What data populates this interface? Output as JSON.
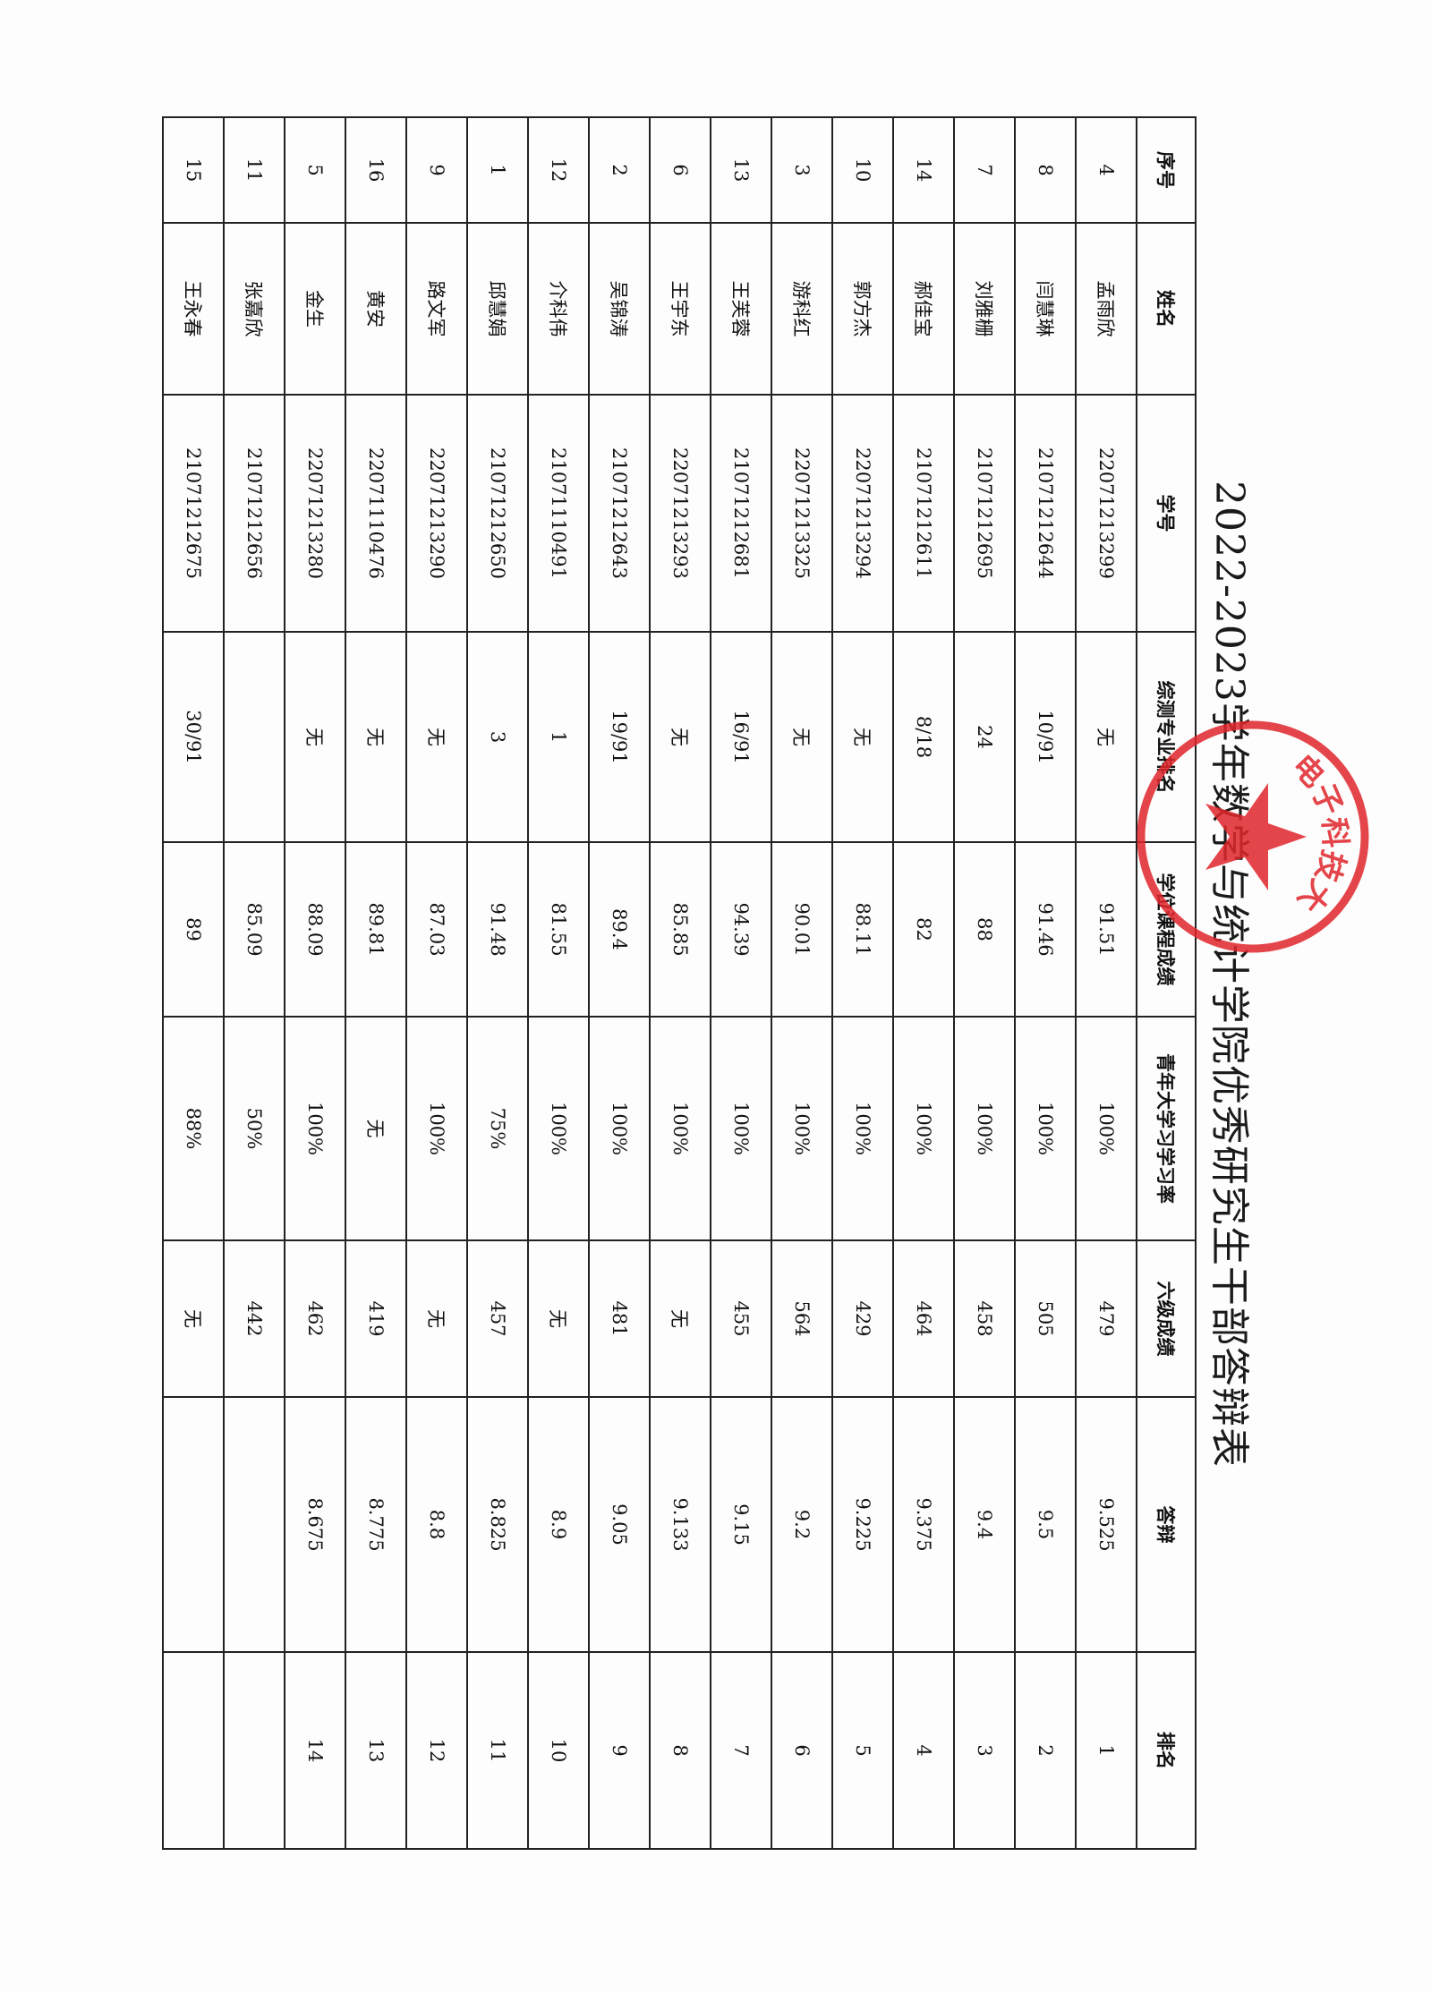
{
  "document": {
    "title": "2022-2023学年数学与统计学院优秀研究生干部答辩表",
    "stamp_text": "电子科技大",
    "stamp_color": "#e0262b"
  },
  "table": {
    "headers": [
      "序号",
      "姓名",
      "学号",
      "综测专业排名",
      "学位课程成绩",
      "青年大学习学习率",
      "六级成绩",
      "答辩",
      "排名"
    ],
    "rows": [
      [
        "4",
        "孟雨欣",
        "22071213299",
        "无",
        "91.51",
        "100%",
        "479",
        "9.525",
        "1"
      ],
      [
        "8",
        "闫慧琳",
        "21071212644",
        "10/91",
        "91.46",
        "100%",
        "505",
        "9.5",
        "2"
      ],
      [
        "7",
        "刘雅栅",
        "21071212695",
        "24",
        "88",
        "100%",
        "458",
        "9.4",
        "3"
      ],
      [
        "14",
        "郝佳宝",
        "21071212611",
        "8/18",
        "82",
        "100%",
        "464",
        "9.375",
        "4"
      ],
      [
        "10",
        "郭方杰",
        "22071213294",
        "无",
        "88.11",
        "100%",
        "429",
        "9.225",
        "5"
      ],
      [
        "3",
        "游科红",
        "22071213325",
        "无",
        "90.01",
        "100%",
        "564",
        "9.2",
        "6"
      ],
      [
        "13",
        "王芙蓉",
        "21071212681",
        "16/91",
        "94.39",
        "100%",
        "455",
        "9.15",
        "7"
      ],
      [
        "6",
        "王宇东",
        "22071213293",
        "无",
        "85.85",
        "100%",
        "无",
        "9.133",
        "8"
      ],
      [
        "2",
        "吴锦涛",
        "21071212643",
        "19/91",
        "89.4",
        "100%",
        "481",
        "9.05",
        "9"
      ],
      [
        "12",
        "介科伟",
        "21071110491",
        "1",
        "81.55",
        "100%",
        "无",
        "8.9",
        "10"
      ],
      [
        "1",
        "邱慧娟",
        "21071212650",
        "3",
        "91.48",
        "75%",
        "457",
        "8.825",
        "11"
      ],
      [
        "9",
        "路文军",
        "22071213290",
        "无",
        "87.03",
        "100%",
        "无",
        "8.8",
        "12"
      ],
      [
        "16",
        "黄安",
        "22071110476",
        "无",
        "89.81",
        "无",
        "419",
        "8.775",
        "13"
      ],
      [
        "5",
        "金生",
        "22071213280",
        "无",
        "88.09",
        "100%",
        "462",
        "8.675",
        "14"
      ],
      [
        "11",
        "张嘉欣",
        "21071212656",
        "",
        "85.09",
        "50%",
        "442",
        "",
        ""
      ],
      [
        "15",
        "王永春",
        "21071212675",
        "30/91",
        "89",
        "88%",
        "无",
        "",
        ""
      ]
    ]
  }
}
